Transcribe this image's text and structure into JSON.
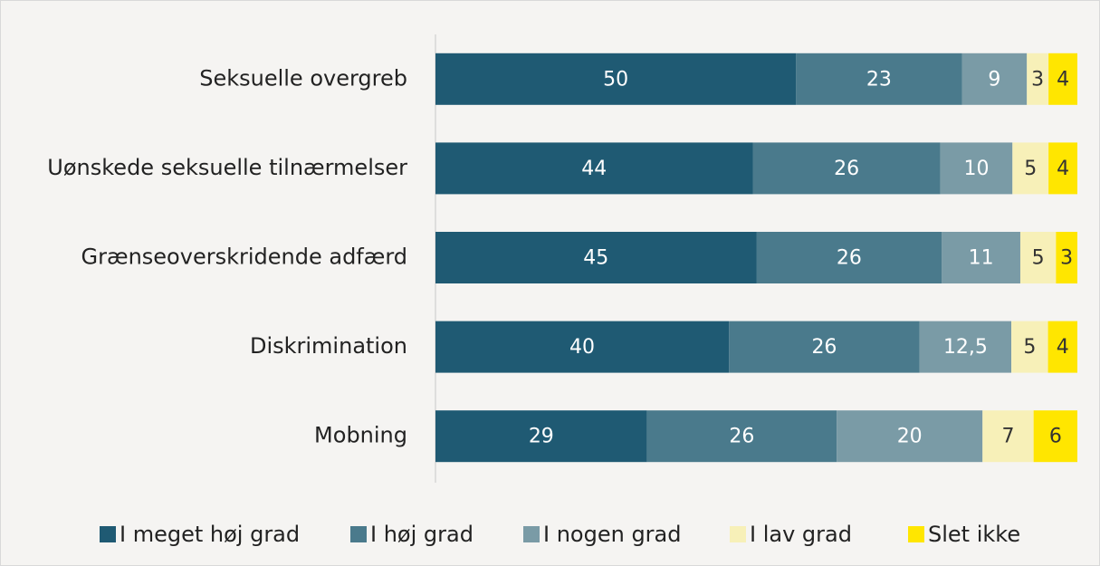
{
  "chart_data": {
    "type": "bar",
    "orientation": "horizontal",
    "stacking": "percent",
    "categories": [
      "Seksuelle overgreb",
      "Uønskede seksuelle tilnærmelser",
      "Grænseoverskridende adfærd",
      "Diskrimination",
      "Mobning"
    ],
    "series": [
      {
        "name": "I meget høj grad",
        "color": "#1f5a73",
        "values": [
          50,
          44,
          45,
          40,
          29
        ]
      },
      {
        "name": "I høj grad",
        "color": "#4a7a8c",
        "values": [
          23,
          26,
          26,
          26,
          26
        ]
      },
      {
        "name": "I nogen grad",
        "color": "#7a9ba6",
        "values": [
          9,
          10,
          11,
          12.5,
          20
        ],
        "value_labels": [
          "9",
          "10",
          "11",
          "12,5",
          "20"
        ]
      },
      {
        "name": "I lav grad",
        "color": "#f7f0b8",
        "values": [
          3,
          5,
          5,
          5,
          7
        ]
      },
      {
        "name": "Slet ikke",
        "color": "#ffe600",
        "values": [
          4,
          4,
          3,
          4,
          6
        ]
      }
    ],
    "legend": "bottom"
  }
}
